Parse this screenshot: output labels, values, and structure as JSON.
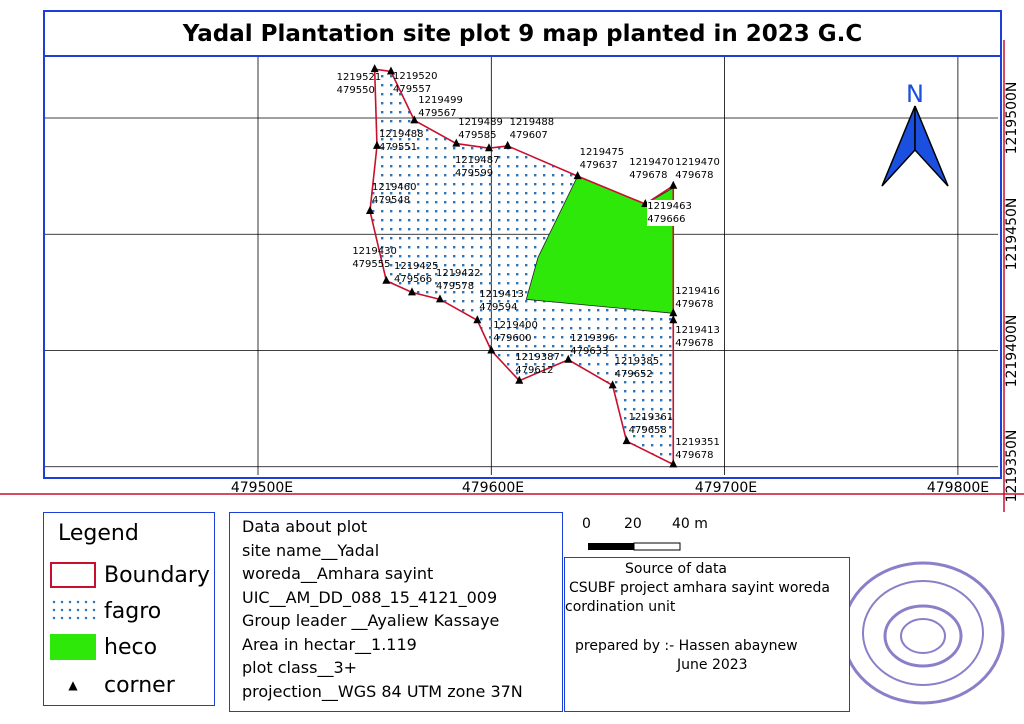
{
  "title": "Yadal Plantation site plot 9 map planted in 2023 G.C",
  "north_arrow_label": "N",
  "x_ticks": [
    "479500E",
    "479600E",
    "479700E",
    "479800E"
  ],
  "y_ticks": [
    "1219500N",
    "1219450N",
    "1219400N",
    "1219350N"
  ],
  "boundary_vertices": [
    {
      "n": "1219521",
      "e": "479550"
    },
    {
      "n": "1219520",
      "e": "479557"
    },
    {
      "n": "1219499",
      "e": "479567"
    },
    {
      "n": "1219489",
      "e": "479585"
    },
    {
      "n": "1219487",
      "e": "479599"
    },
    {
      "n": "1219488",
      "e": "479607"
    },
    {
      "n": "1219475",
      "e": "479637"
    },
    {
      "n": "1219463",
      "e": "479666"
    },
    {
      "n": "1219470",
      "e": "479678"
    },
    {
      "n": "1219470",
      "e": "479678"
    },
    {
      "n": "1219416",
      "e": "479678"
    },
    {
      "n": "1219413",
      "e": "479678"
    },
    {
      "n": "1219351",
      "e": "479678"
    },
    {
      "n": "1219361",
      "e": "479658"
    },
    {
      "n": "1219385",
      "e": "479652"
    },
    {
      "n": "1219396",
      "e": "479633"
    },
    {
      "n": "1219387",
      "e": "479612"
    },
    {
      "n": "1219400",
      "e": "479600"
    },
    {
      "n": "1219413",
      "e": "479594"
    },
    {
      "n": "1219422",
      "e": "479578"
    },
    {
      "n": "1219425",
      "e": "479566"
    },
    {
      "n": "1219430",
      "e": "479555"
    },
    {
      "n": "1219460",
      "e": "479548"
    },
    {
      "n": "1219488",
      "e": "479551"
    }
  ],
  "heco_vertices": [
    [
      479637,
      1219475
    ],
    [
      479666,
      1219463
    ],
    [
      479678,
      1219470
    ],
    [
      479678,
      1219416
    ],
    [
      479615,
      1219422
    ],
    [
      479620,
      1219440
    ]
  ],
  "colors": {
    "boundary": "#c8102e",
    "fagro_dot": "#2e75b6",
    "heco": "#2ee80a",
    "frame": "#1d3fd8",
    "north": "#1a4fe0"
  },
  "legend": {
    "title": "Legend",
    "items": [
      "Boundary",
      "fagro",
      "heco",
      "corner"
    ]
  },
  "scale_bar": {
    "labels": [
      "0",
      "20",
      "40 m"
    ]
  },
  "plot_info": {
    "lines": [
      "Data about plot",
      "site name__Yadal",
      "woreda__Amhara sayint",
      "UIC__AM_DD_088_15_4121_009",
      "Group leader __Ayaliew Kassaye",
      "Area in hectar__1.119",
      "plot class__3+",
      "projection__WGS 84 UTM zone 37N"
    ]
  },
  "source": {
    "heading": "Source of data",
    "line1": "CSUBF project amhara sayint woreda",
    "line2": "cordination unit",
    "prepared": "prepared by :- Hassen abaynew",
    "date": "June 2023"
  }
}
